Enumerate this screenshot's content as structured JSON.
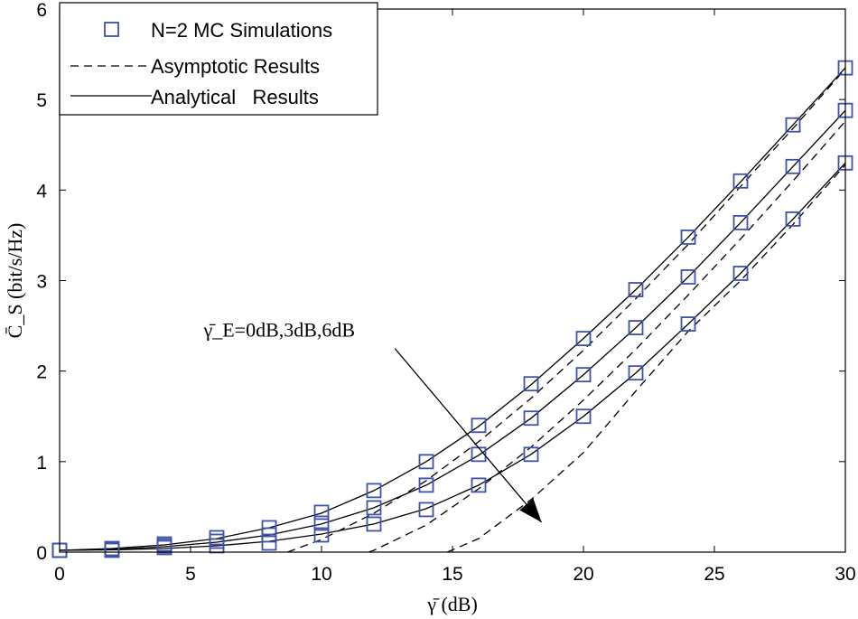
{
  "chart_data": {
    "type": "line",
    "xlabel": "γ̄ (dB)",
    "ylabel": "C̄_S (bit/s/Hz)",
    "xlim": [
      0,
      30
    ],
    "ylim": [
      0,
      6
    ],
    "xticks": [
      0,
      5,
      10,
      15,
      20,
      25,
      30
    ],
    "yticks": [
      0,
      1,
      2,
      3,
      4,
      5,
      6
    ],
    "grid": false,
    "legend_position": "top-left",
    "legend": [
      {
        "label": "N=2 MC Simulations",
        "style": "square-marker",
        "color": "#3f51a8"
      },
      {
        "label": "Asymptotic Results",
        "style": "dashed",
        "color": "#000000"
      },
      {
        "label": "Analytical   Results",
        "style": "solid",
        "color": "#000000"
      }
    ],
    "annotation": {
      "text": "γ̄_E=0dB,3dB,6dB"
    },
    "series": [
      {
        "name": "Analytical γE=0dB",
        "style": "solid",
        "x": [
          0,
          2,
          4,
          6,
          8,
          10,
          12,
          14,
          16,
          18,
          20,
          22,
          24,
          26,
          28,
          30
        ],
        "values": [
          0.02,
          0.04,
          0.08,
          0.15,
          0.27,
          0.43,
          0.68,
          1.0,
          1.39,
          1.85,
          2.36,
          2.9,
          3.48,
          4.09,
          4.72,
          5.35
        ]
      },
      {
        "name": "Analytical γE=3dB",
        "style": "solid",
        "x": [
          0,
          2,
          4,
          6,
          8,
          10,
          12,
          14,
          16,
          18,
          20,
          22,
          24,
          26,
          28,
          30
        ],
        "values": [
          0.02,
          0.03,
          0.06,
          0.11,
          0.19,
          0.31,
          0.49,
          0.74,
          1.07,
          1.48,
          1.96,
          2.48,
          3.04,
          3.64,
          4.26,
          4.88
        ]
      },
      {
        "name": "Analytical γE=6dB",
        "style": "solid",
        "x": [
          0,
          2,
          4,
          6,
          8,
          10,
          12,
          14,
          16,
          18,
          20,
          22,
          24,
          26,
          28,
          30
        ],
        "values": [
          0.02,
          0.025,
          0.04,
          0.07,
          0.12,
          0.2,
          0.31,
          0.48,
          0.74,
          1.08,
          1.5,
          1.98,
          2.52,
          3.08,
          3.68,
          4.3
        ]
      },
      {
        "name": "Asymptotic γE=0dB",
        "style": "dashed",
        "x": [
          8.7,
          10,
          12,
          14,
          16,
          18,
          20,
          22,
          24,
          26,
          28,
          30
        ],
        "values": [
          0.0,
          0.14,
          0.43,
          0.79,
          1.22,
          1.7,
          2.23,
          2.8,
          3.4,
          4.04,
          4.68,
          5.34
        ]
      },
      {
        "name": "Asymptotic γE=3dB",
        "style": "dashed",
        "x": [
          11.8,
          12,
          14,
          16,
          18,
          20,
          22,
          24,
          26,
          28,
          30
        ],
        "values": [
          0.0,
          0.02,
          0.3,
          0.7,
          1.16,
          1.68,
          2.24,
          2.84,
          3.46,
          4.1,
          4.76
        ]
      },
      {
        "name": "Asymptotic γE=6dB",
        "style": "dashed",
        "x": [
          14.8,
          16,
          18,
          20,
          22,
          24,
          26,
          28,
          30
        ],
        "values": [
          0.0,
          0.15,
          0.58,
          1.1,
          1.78,
          2.44,
          3.0,
          3.62,
          4.28
        ]
      },
      {
        "name": "N=2 MC Simulations γE=0dB",
        "style": "markers",
        "x": [
          0,
          2,
          4,
          6,
          8,
          10,
          12,
          14,
          16,
          18,
          20,
          22,
          24,
          26,
          28,
          30
        ],
        "values": [
          0.02,
          0.04,
          0.09,
          0.16,
          0.27,
          0.44,
          0.68,
          1.0,
          1.4,
          1.86,
          2.36,
          2.9,
          3.48,
          4.1,
          4.72,
          5.35
        ]
      },
      {
        "name": "N=2 MC Simulations γE=3dB",
        "style": "markers",
        "x": [
          0,
          2,
          4,
          6,
          8,
          10,
          12,
          14,
          16,
          18,
          20,
          22,
          24,
          26,
          28,
          30
        ],
        "values": [
          0.02,
          0.03,
          0.07,
          0.12,
          0.19,
          0.32,
          0.49,
          0.74,
          1.08,
          1.48,
          1.96,
          2.48,
          3.04,
          3.64,
          4.26,
          4.88
        ]
      },
      {
        "name": "N=2 MC Simulations γE=6dB",
        "style": "markers",
        "x": [
          0,
          2,
          4,
          6,
          8,
          10,
          12,
          14,
          16,
          18,
          20,
          22,
          24,
          26,
          28,
          30
        ],
        "values": [
          0.02,
          0.02,
          0.05,
          0.07,
          0.1,
          0.19,
          0.31,
          0.47,
          0.74,
          1.08,
          1.5,
          1.98,
          2.52,
          3.08,
          3.68,
          4.3
        ]
      }
    ]
  }
}
